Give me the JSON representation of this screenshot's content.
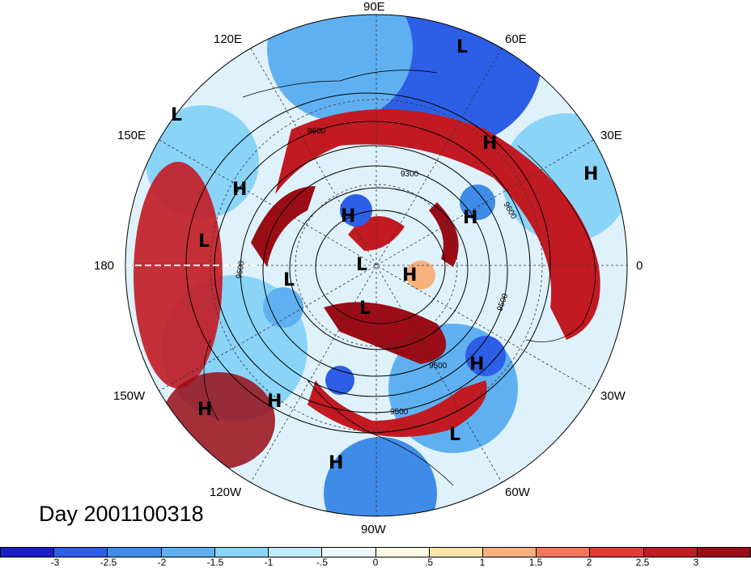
{
  "title": "Day 2001100318",
  "longitude_labels": {
    "lon_90e": "90E",
    "lon_60e": "60E",
    "lon_120e": "120E",
    "lon_30e": "30E",
    "lon_150e": "150E",
    "lon_0": "0",
    "lon_180": "180",
    "lon_30w": "30W",
    "lon_150w": "150W",
    "lon_60w": "60W",
    "lon_120w": "120W",
    "lon_90w": "90W"
  },
  "pressure_centers": [
    {
      "type": "L"
    },
    {
      "type": "L"
    },
    {
      "type": "H"
    },
    {
      "type": "H"
    },
    {
      "type": "H"
    },
    {
      "type": "L"
    },
    {
      "type": "H"
    },
    {
      "type": "H"
    },
    {
      "type": "L"
    },
    {
      "type": "H"
    },
    {
      "type": "L"
    },
    {
      "type": "L"
    },
    {
      "type": "H"
    },
    {
      "type": "H"
    },
    {
      "type": "H"
    },
    {
      "type": "L"
    },
    {
      "type": "H"
    }
  ],
  "contour_labels": [
    "9600",
    "9300",
    "9600",
    "9600",
    "9500",
    "9500",
    "9500"
  ],
  "colorbar": {
    "colors": [
      "#1c1cc8",
      "#2d5fe6",
      "#3f8ce8",
      "#5fb0f0",
      "#8ad4f8",
      "#c2ecfb",
      "#eefafd",
      "#fdfbe3",
      "#fde6a8",
      "#f8b07c",
      "#f2765a",
      "#e23a35",
      "#c21a22",
      "#9a0d16"
    ],
    "tick_labels": [
      "-3",
      "-2.5",
      "-2",
      "-1.5",
      "-1",
      "-.5",
      "0",
      ".5",
      "1",
      "1.5",
      "2",
      "2.5",
      "3"
    ]
  }
}
